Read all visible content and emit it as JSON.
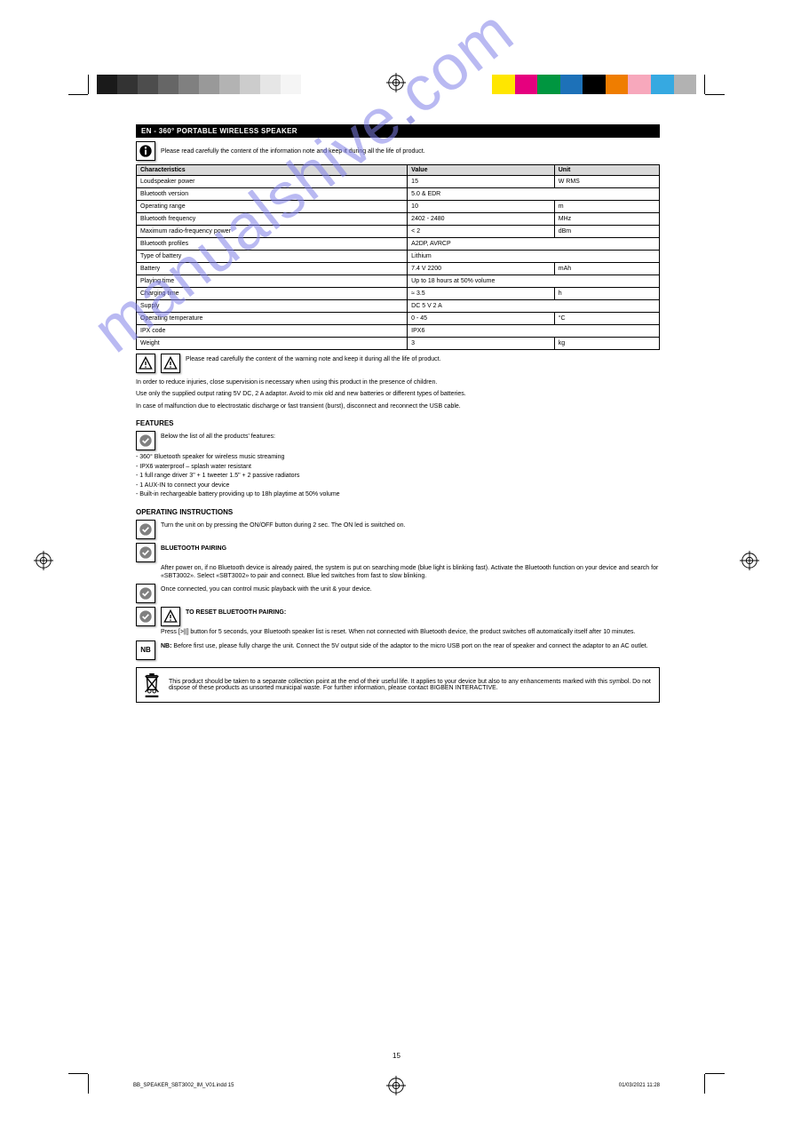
{
  "colorbar_left": [
    "#1a1a1a",
    "#333333",
    "#4d4d4d",
    "#666666",
    "#808080",
    "#999999",
    "#b3b3b3",
    "#cccccc",
    "#e6e6e6",
    "#f5f5f5"
  ],
  "colorbar_right": [
    "#ffe600",
    "#e6007e",
    "#009640",
    "#1d71b8",
    "#000000",
    "#ef7d00",
    "#f7a8bc",
    "#36a9e1",
    "#b2b2b2"
  ],
  "section_title": "EN - 360° PORTABLE WIRELESS SPEAKER",
  "info_label": "Please read carefully the content of the information note and keep it during all the life of product.",
  "table": {
    "headers": [
      "Characteristics",
      "Value",
      "Unit"
    ],
    "rows": [
      [
        "Loudspeaker power",
        "15",
        "W RMS"
      ],
      [
        "Bluetooth version",
        "5.0 & EDR",
        ""
      ],
      [
        "Operating range",
        "10",
        "m"
      ],
      [
        "Bluetooth frequency",
        "2402 - 2480",
        "MHz"
      ],
      [
        "Maximum radio-frequency power",
        "< 2",
        "dBm"
      ],
      [
        "Bluetooth profiles",
        "A2DP, AVRCP",
        ""
      ],
      [
        "Type of battery",
        "Lithium",
        ""
      ],
      [
        "Battery",
        "7.4 V 2200",
        "mAh"
      ],
      [
        "Playing time",
        "Up to 18 hours at 50% volume",
        ""
      ],
      [
        "Charging time",
        "≈ 3.5",
        "h"
      ],
      [
        "Supply",
        "DC 5 V 2 A",
        ""
      ],
      [
        "Operating temperature",
        "0 - 45",
        "°C"
      ],
      [
        "IPX code",
        "IPX6",
        ""
      ],
      [
        "Weight",
        "3",
        "kg"
      ]
    ]
  },
  "warn1_text": "Please read carefully the content of the warning note and keep it during all the life of product.",
  "warn1_body": [
    "In order to reduce injuries, close supervision is necessary when using this product in the presence of children.",
    "Use only the supplied output rating 5V DC, 2 A adaptor. Avoid to mix old and new batteries or different types of batteries.",
    "In case of malfunction due to electrostatic discharge or fast transient (burst), disconnect and reconnect the USB cable."
  ],
  "features_head": "FEATURES",
  "features_icon_text": "Below the list of all the products' features:",
  "features": [
    "360° Bluetooth speaker for wireless music streaming",
    "IPX6 waterproof – splash water resistant",
    "1 full range driver 3\" + 1 tweeter 1.5\" + 2 passive radiators",
    "1 AUX-IN to connect your device",
    "Built-in rechargeable battery providing up to 18h playtime at 50% volume"
  ],
  "instr_head": "OPERATING INSTRUCTIONS",
  "instr_on_text": "Turn the unit on by pressing the ON/OFF button during 2 sec. The ON led is switched on.",
  "instr_pair_head": "BLUETOOTH PAIRING",
  "instr_pair_text": "After power on, if no Bluetooth device is already paired, the system is put on searching mode (blue light is blinking fast). Activate the Bluetooth function on your device and search for «SBT3002». Select «SBT3002» to pair and connect. Blue led switches from fast to slow blinking.",
  "instr_music_text": "Once connected, you can control music playback with the unit & your device.",
  "instr_reset_head": "TO RESET BLUETOOTH PAIRING:",
  "instr_reset_text": "Press [>||] button for 5 seconds, your Bluetooth speaker list is reset. When not connected with Bluetooth device, the product switches off automatically itself after 10 minutes.",
  "nb_label": "NB:",
  "nb_text": "Before first use, please fully charge the unit. Connect the 5V output side of the adaptor to the micro USB port on the rear of speaker and connect the adaptor to an AC outlet.",
  "weee_text": "This product should be taken to a separate collection point at the end of their useful life. It applies to your device but also to any enhancements marked with this symbol. Do not dispose of these products as unsorted municipal waste. For further information, please contact BIGBEN INTERACTIVE.",
  "page_number": "15",
  "footer_meta": "BB_SPEAKER_SBT3002_IM_V01.indd   15",
  "footer_date": "01/03/2021   11:28"
}
